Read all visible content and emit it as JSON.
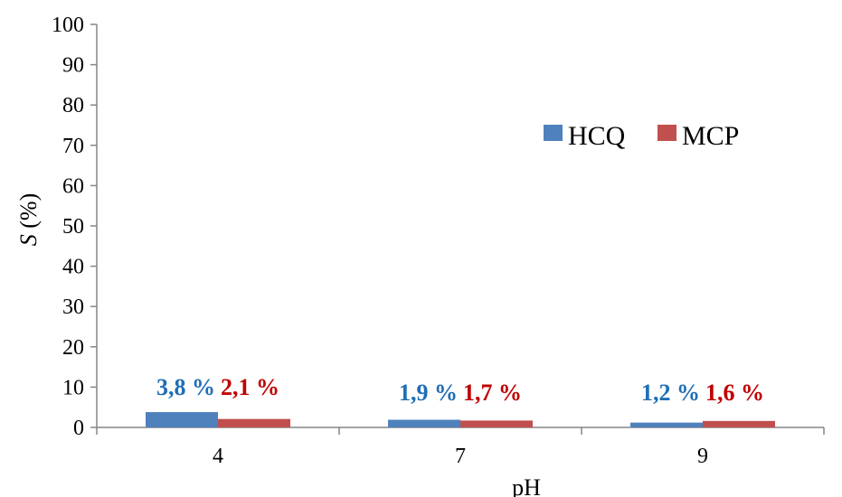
{
  "chart_data": {
    "type": "bar",
    "categories": [
      "4",
      "7",
      "9"
    ],
    "series": [
      {
        "name": "HCQ",
        "values": [
          3.8,
          1.9,
          1.2
        ],
        "labels": [
          "3,8 %",
          "1,9 %",
          "1,2 %"
        ],
        "color": "#4f81bd",
        "label_color": "#1f6fb5"
      },
      {
        "name": "MCP",
        "values": [
          2.1,
          1.7,
          1.6
        ],
        "labels": [
          "2,1 %",
          "1,7 %",
          "1,6 %"
        ],
        "color": "#c0504d",
        "label_color": "#c00000"
      }
    ],
    "xlabel": "pH",
    "ylabel_italic": "S",
    "ylabel_rest": " (%)",
    "ylim": [
      0,
      100
    ],
    "yticks": [
      "0",
      "10",
      "20",
      "30",
      "40",
      "50",
      "60",
      "70",
      "80",
      "90",
      "100"
    ],
    "grid": false,
    "legend_position": "right"
  }
}
